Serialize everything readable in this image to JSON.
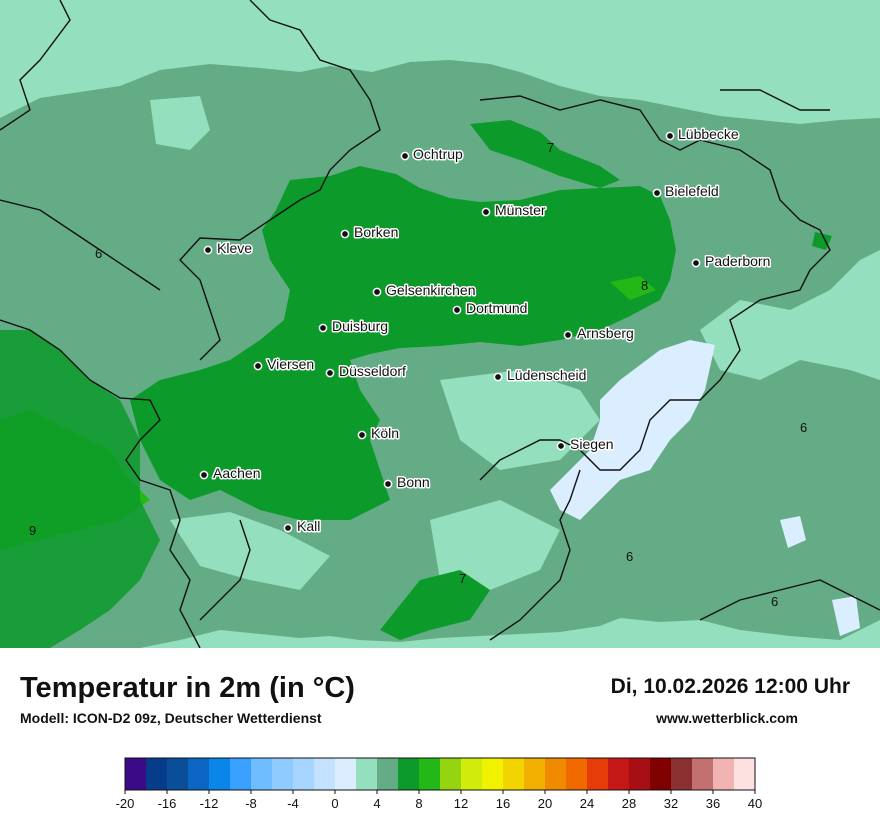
{
  "map": {
    "cities": [
      {
        "name": "Lübbecke"
      },
      {
        "name": "Ochtrup"
      },
      {
        "name": "Bielefeld"
      },
      {
        "name": "Münster"
      },
      {
        "name": "Borken"
      },
      {
        "name": "Kleve"
      },
      {
        "name": "Paderborn"
      },
      {
        "name": "Gelsenkirchen"
      },
      {
        "name": "Dortmund"
      },
      {
        "name": "Duisburg"
      },
      {
        "name": "Arnsberg"
      },
      {
        "name": "Viersen"
      },
      {
        "name": "Düsseldorf"
      },
      {
        "name": "Lüdenscheid"
      },
      {
        "name": "Köln"
      },
      {
        "name": "Siegen"
      },
      {
        "name": "Aachen"
      },
      {
        "name": "Bonn"
      },
      {
        "name": "Kall"
      }
    ],
    "isolines": [
      "7",
      "6",
      "8",
      "6",
      "6",
      "9",
      "7",
      "6"
    ]
  },
  "footer": {
    "title": "Temperatur in 2m (in °C)",
    "subtitle": "Modell: ICON-D2 09z, Deutscher Wetterdienst",
    "datetime": "Di, 10.02.2026 12:00 Uhr",
    "website": "www.wetterblick.com"
  },
  "legend": {
    "ticks": [
      "-20",
      "-16",
      "-12",
      "-8",
      "-4",
      "0",
      "4",
      "8",
      "12",
      "16",
      "20",
      "24",
      "28",
      "32",
      "36",
      "40"
    ],
    "colors": [
      "#3b0a86",
      "#063c8a",
      "#0a4d99",
      "#0a66c2",
      "#0a85e8",
      "#3aa0ff",
      "#6fbcff",
      "#8fcbff",
      "#a6d6ff",
      "#c2e2ff",
      "#dbeeff",
      "#93dfbe",
      "#64ac86",
      "#0c9a2a",
      "#23b817",
      "#94d50f",
      "#d1ec0a",
      "#f0f200",
      "#f2d400",
      "#f2b000",
      "#f08a00",
      "#f06a00",
      "#e63c0a",
      "#c31816",
      "#a80f14",
      "#800000",
      "#8b3030",
      "#c27070",
      "#f2b3b3",
      "#fde0e0"
    ]
  }
}
